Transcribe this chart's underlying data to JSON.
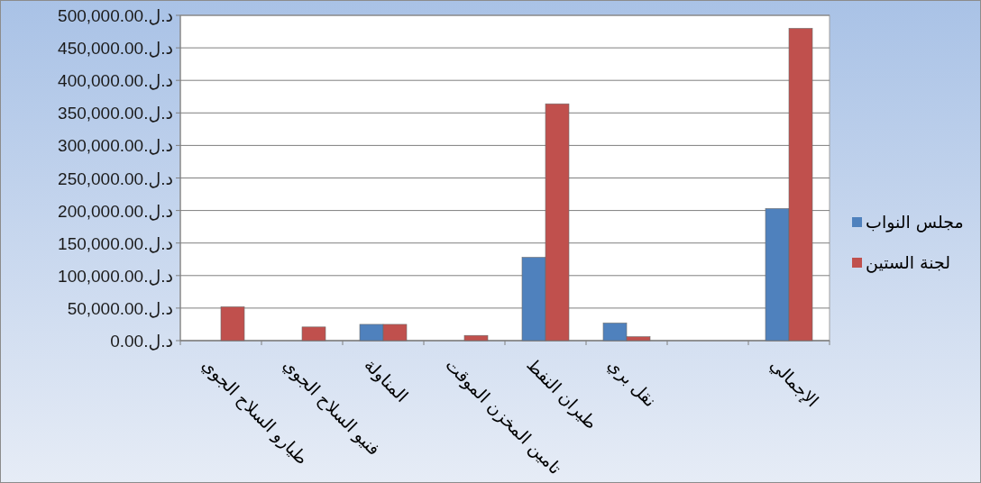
{
  "chart_data": {
    "type": "bar",
    "categories": [
      "طيارو السلاح الجوي",
      "فنيو السلاح الجوي",
      "المناولة",
      "تامين المخزن الموقت",
      "طيران النفط",
      "نقل بري",
      null,
      "الإجمالي"
    ],
    "series": [
      {
        "name": "مجلس النواب",
        "color": "#4f81bd",
        "values": [
          null,
          null,
          25000,
          null,
          128000,
          27000,
          null,
          203000
        ]
      },
      {
        "name": "لجنة الستين",
        "color": "#c0504d",
        "values": [
          52000,
          21000,
          25000,
          8000,
          364000,
          6000,
          null,
          480000
        ]
      }
    ],
    "ylim": [
      0,
      500000
    ],
    "yticks": [
      {
        "value": 0,
        "label": "0.00.د.ل"
      },
      {
        "value": 50000,
        "label": "50,000.00.د.ل"
      },
      {
        "value": 100000,
        "label": "100,000.00.د.ل"
      },
      {
        "value": 150000,
        "label": "150,000.00.د.ل"
      },
      {
        "value": 200000,
        "label": "200,000.00.د.ل"
      },
      {
        "value": 250000,
        "label": "250,000.00.د.ل"
      },
      {
        "value": 300000,
        "label": "300,000.00.د.ل"
      },
      {
        "value": 350000,
        "label": "350,000.00.د.ل"
      },
      {
        "value": 400000,
        "label": "400,000.00.د.ل"
      },
      {
        "value": 450000,
        "label": "450,000.00.د.ل"
      },
      {
        "value": 500000,
        "label": "500,000.00.د.ل"
      }
    ],
    "grid": "y",
    "legend": "right"
  }
}
